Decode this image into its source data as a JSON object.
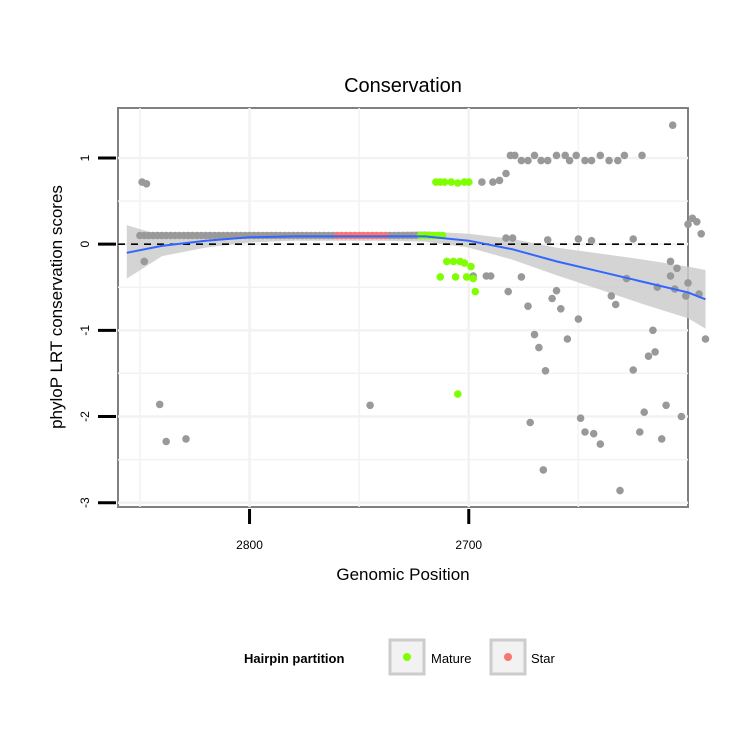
{
  "chart_data": {
    "type": "scatter",
    "title": "Conservation",
    "xlabel": "Genomic Position",
    "ylabel": "phyloP LRT conservation scores",
    "x_reversed": true,
    "xlim": [
      2860,
      2600
    ],
    "ylim": [
      -3.05,
      1.58
    ],
    "x_ticks": [
      {
        "value": 2800,
        "label": "2800"
      },
      {
        "value": 2700,
        "label": "2700"
      }
    ],
    "y_ticks": [
      {
        "value": 1,
        "label": "1"
      },
      {
        "value": 0,
        "label": "0"
      },
      {
        "value": -1,
        "label": "-1"
      },
      {
        "value": -2,
        "label": "-2"
      },
      {
        "value": -3,
        "label": "-3"
      }
    ],
    "reference_line": {
      "y": 0,
      "style": "dashed"
    },
    "grid": true,
    "legend": {
      "title": "Hairpin partition",
      "position": "bottom",
      "entries": [
        {
          "label": "Mature",
          "color": "#7fff00"
        },
        {
          "label": "Star",
          "color": "#f8766d"
        }
      ]
    },
    "colors": {
      "other": "#999999",
      "mature": "#7fff00",
      "star": "#f8766d",
      "smooth": "#3366ff",
      "band": "#cccccc"
    },
    "series": [
      {
        "name": "Other",
        "color": "#999999",
        "points": [
          [
            2850,
            0.1
          ],
          [
            2848,
            0.1
          ],
          [
            2846,
            0.1
          ],
          [
            2844,
            0.1
          ],
          [
            2842,
            0.1
          ],
          [
            2840,
            0.1
          ],
          [
            2838,
            0.1
          ],
          [
            2836,
            0.1
          ],
          [
            2834,
            0.1
          ],
          [
            2832,
            0.1
          ],
          [
            2830,
            0.1
          ],
          [
            2828,
            0.1
          ],
          [
            2826,
            0.1
          ],
          [
            2824,
            0.1
          ],
          [
            2822,
            0.1
          ],
          [
            2820,
            0.1
          ],
          [
            2818,
            0.1
          ],
          [
            2816,
            0.1
          ],
          [
            2814,
            0.1
          ],
          [
            2812,
            0.1
          ],
          [
            2810,
            0.1
          ],
          [
            2808,
            0.1
          ],
          [
            2806,
            0.1
          ],
          [
            2804,
            0.1
          ],
          [
            2802,
            0.1
          ],
          [
            2800,
            0.1
          ],
          [
            2798,
            0.1
          ],
          [
            2796,
            0.1
          ],
          [
            2794,
            0.1
          ],
          [
            2792,
            0.1
          ],
          [
            2790,
            0.1
          ],
          [
            2788,
            0.1
          ],
          [
            2786,
            0.1
          ],
          [
            2784,
            0.1
          ],
          [
            2782,
            0.1
          ],
          [
            2780,
            0.1
          ],
          [
            2778,
            0.1
          ],
          [
            2776,
            0.1
          ],
          [
            2774,
            0.1
          ],
          [
            2772,
            0.1
          ],
          [
            2770,
            0.1
          ],
          [
            2768,
            0.1
          ],
          [
            2766,
            0.1
          ],
          [
            2764,
            0.1
          ],
          [
            2762,
            0.1
          ],
          [
            2736,
            0.1
          ],
          [
            2734,
            0.1
          ],
          [
            2732,
            0.1
          ],
          [
            2730,
            0.1
          ],
          [
            2728,
            0.1
          ],
          [
            2726,
            0.1
          ],
          [
            2724,
            0.1
          ],
          [
            2722,
            0.1
          ],
          [
            2720,
            0.1
          ],
          [
            2718,
            0.1
          ],
          [
            2849,
            0.72
          ],
          [
            2847,
            0.7
          ],
          [
            2848,
            -0.2
          ],
          [
            2841,
            -1.86
          ],
          [
            2838,
            -2.29
          ],
          [
            2829,
            -2.26
          ],
          [
            2745,
            -1.87
          ],
          [
            2694,
            0.72
          ],
          [
            2689,
            0.72
          ],
          [
            2686,
            0.74
          ],
          [
            2683,
            0.82
          ],
          [
            2681,
            1.03
          ],
          [
            2679,
            1.03
          ],
          [
            2676,
            0.97
          ],
          [
            2673,
            0.97
          ],
          [
            2670,
            1.03
          ],
          [
            2667,
            0.97
          ],
          [
            2664,
            0.97
          ],
          [
            2660,
            1.03
          ],
          [
            2656,
            1.03
          ],
          [
            2654,
            0.97
          ],
          [
            2651,
            1.03
          ],
          [
            2647,
            0.97
          ],
          [
            2644,
            0.97
          ],
          [
            2640,
            1.03
          ],
          [
            2636,
            0.97
          ],
          [
            2632,
            0.97
          ],
          [
            2629,
            1.03
          ],
          [
            2621,
            1.03
          ],
          [
            2607,
            1.38
          ],
          [
            2683,
            0.07
          ],
          [
            2680,
            0.07
          ],
          [
            2664,
            0.05
          ],
          [
            2650,
            0.06
          ],
          [
            2644,
            0.04
          ],
          [
            2625,
            0.06
          ],
          [
            2698,
            -0.37
          ],
          [
            2692,
            -0.37
          ],
          [
            2690,
            -0.37
          ],
          [
            2682,
            -0.55
          ],
          [
            2676,
            -0.38
          ],
          [
            2673,
            -0.72
          ],
          [
            2670,
            -1.05
          ],
          [
            2668,
            -1.2
          ],
          [
            2665,
            -1.47
          ],
          [
            2662,
            -0.63
          ],
          [
            2660,
            -0.54
          ],
          [
            2658,
            -0.75
          ],
          [
            2655,
            -1.1
          ],
          [
            2650,
            -0.87
          ],
          [
            2649,
            -2.02
          ],
          [
            2647,
            -2.18
          ],
          [
            2643,
            -2.2
          ],
          [
            2640,
            -2.32
          ],
          [
            2635,
            -0.6
          ],
          [
            2633,
            -0.7
          ],
          [
            2631,
            -2.86
          ],
          [
            2628,
            -0.4
          ],
          [
            2625,
            -1.46
          ],
          [
            2622,
            -2.18
          ],
          [
            2620,
            -1.95
          ],
          [
            2618,
            -1.3
          ],
          [
            2616,
            -1.0
          ],
          [
            2615,
            -1.25
          ],
          [
            2614,
            -0.5
          ],
          [
            2612,
            -2.26
          ],
          [
            2610,
            -1.87
          ],
          [
            2608,
            -0.2
          ],
          [
            2608,
            -0.37
          ],
          [
            2606,
            -0.52
          ],
          [
            2605,
            -0.28
          ],
          [
            2603,
            -2.0
          ],
          [
            2601,
            -0.6
          ],
          [
            2600,
            -0.45
          ],
          [
            2598,
            0.3
          ],
          [
            2596,
            0.26
          ],
          [
            2594,
            0.12
          ],
          [
            2592,
            -1.1
          ],
          [
            2595,
            -0.58
          ],
          [
            2672,
            -2.07
          ],
          [
            2666,
            -2.62
          ],
          [
            2600,
            0.23
          ]
        ]
      },
      {
        "name": "Mature",
        "color": "#7fff00",
        "points": [
          [
            2722,
            0.1
          ],
          [
            2720,
            0.1
          ],
          [
            2718,
            0.1
          ],
          [
            2716,
            0.1
          ],
          [
            2714,
            0.1
          ],
          [
            2712,
            0.1
          ],
          [
            2715,
            0.72
          ],
          [
            2713,
            0.72
          ],
          [
            2711,
            0.72
          ],
          [
            2708,
            0.72
          ],
          [
            2705,
            0.71
          ],
          [
            2702,
            0.72
          ],
          [
            2700,
            0.72
          ],
          [
            2710,
            -0.2
          ],
          [
            2707,
            -0.2
          ],
          [
            2704,
            -0.2
          ],
          [
            2702,
            -0.22
          ],
          [
            2699,
            -0.26
          ],
          [
            2713,
            -0.38
          ],
          [
            2706,
            -0.38
          ],
          [
            2701,
            -0.38
          ],
          [
            2698,
            -0.4
          ],
          [
            2697,
            -0.55
          ],
          [
            2705,
            -1.74
          ]
        ]
      },
      {
        "name": "Star",
        "color": "#f8766d",
        "points": [
          [
            2760,
            0.1
          ],
          [
            2758,
            0.1
          ],
          [
            2756,
            0.1
          ],
          [
            2754,
            0.1
          ],
          [
            2752,
            0.1
          ],
          [
            2750,
            0.1
          ],
          [
            2748,
            0.1
          ],
          [
            2746,
            0.1
          ],
          [
            2744,
            0.1
          ],
          [
            2742,
            0.1
          ],
          [
            2740,
            0.1
          ],
          [
            2738,
            0.1
          ]
        ]
      }
    ],
    "smooth": {
      "method": "loess",
      "color": "#3366ff",
      "x": [
        2856,
        2840,
        2820,
        2800,
        2780,
        2760,
        2740,
        2720,
        2700,
        2680,
        2660,
        2640,
        2620,
        2600,
        2592
      ],
      "y": [
        -0.1,
        -0.02,
        0.04,
        0.08,
        0.09,
        0.09,
        0.09,
        0.09,
        0.04,
        -0.06,
        -0.2,
        -0.32,
        -0.44,
        -0.56,
        -0.64
      ],
      "ci_lower": [
        -0.4,
        -0.14,
        -0.04,
        0.02,
        0.04,
        0.04,
        0.04,
        0.03,
        -0.04,
        -0.18,
        -0.36,
        -0.53,
        -0.7,
        -0.86,
        -0.98
      ],
      "ci_upper": [
        0.22,
        0.1,
        0.12,
        0.14,
        0.14,
        0.14,
        0.14,
        0.15,
        0.12,
        0.06,
        -0.04,
        -0.11,
        -0.18,
        -0.26,
        -0.3
      ]
    }
  }
}
